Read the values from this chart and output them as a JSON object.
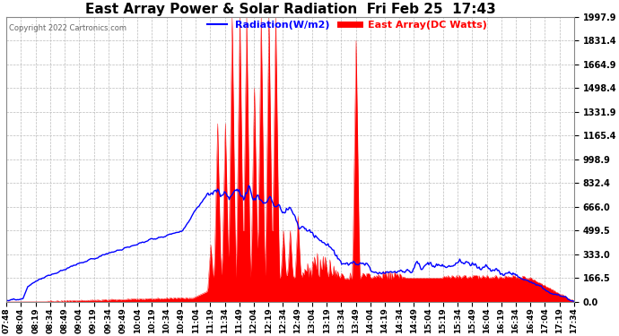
{
  "title": "East Array Power & Solar Radiation  Fri Feb 25  17:43",
  "copyright": "Copyright 2022 Cartronics.com",
  "legend_radiation": "Radiation(W/m2)",
  "legend_east_array": "East Array(DC Watts)",
  "y_ticks": [
    0.0,
    166.5,
    333.0,
    499.5,
    666.0,
    832.4,
    998.9,
    1165.4,
    1331.9,
    1498.4,
    1664.9,
    1831.4,
    1997.9
  ],
  "y_max": 1997.9,
  "y_min": 0.0,
  "x_labels": [
    "07:48",
    "08:04",
    "08:19",
    "08:34",
    "08:49",
    "09:04",
    "09:19",
    "09:34",
    "09:49",
    "10:04",
    "10:19",
    "10:34",
    "10:49",
    "11:04",
    "11:19",
    "11:34",
    "11:49",
    "12:04",
    "12:19",
    "12:34",
    "12:49",
    "13:04",
    "13:19",
    "13:34",
    "13:49",
    "14:04",
    "14:19",
    "14:34",
    "14:49",
    "15:04",
    "15:19",
    "15:34",
    "15:49",
    "16:04",
    "16:19",
    "16:34",
    "16:49",
    "17:04",
    "17:19",
    "17:34"
  ],
  "bg_color": "#ffffff",
  "grid_color": "#bbbbbb",
  "radiation_color": "#0000ff",
  "east_array_color": "#ff0000",
  "title_color": "#000000",
  "title_fontsize": 11,
  "tick_fontsize": 7,
  "xlabel_fontsize": 6.5
}
